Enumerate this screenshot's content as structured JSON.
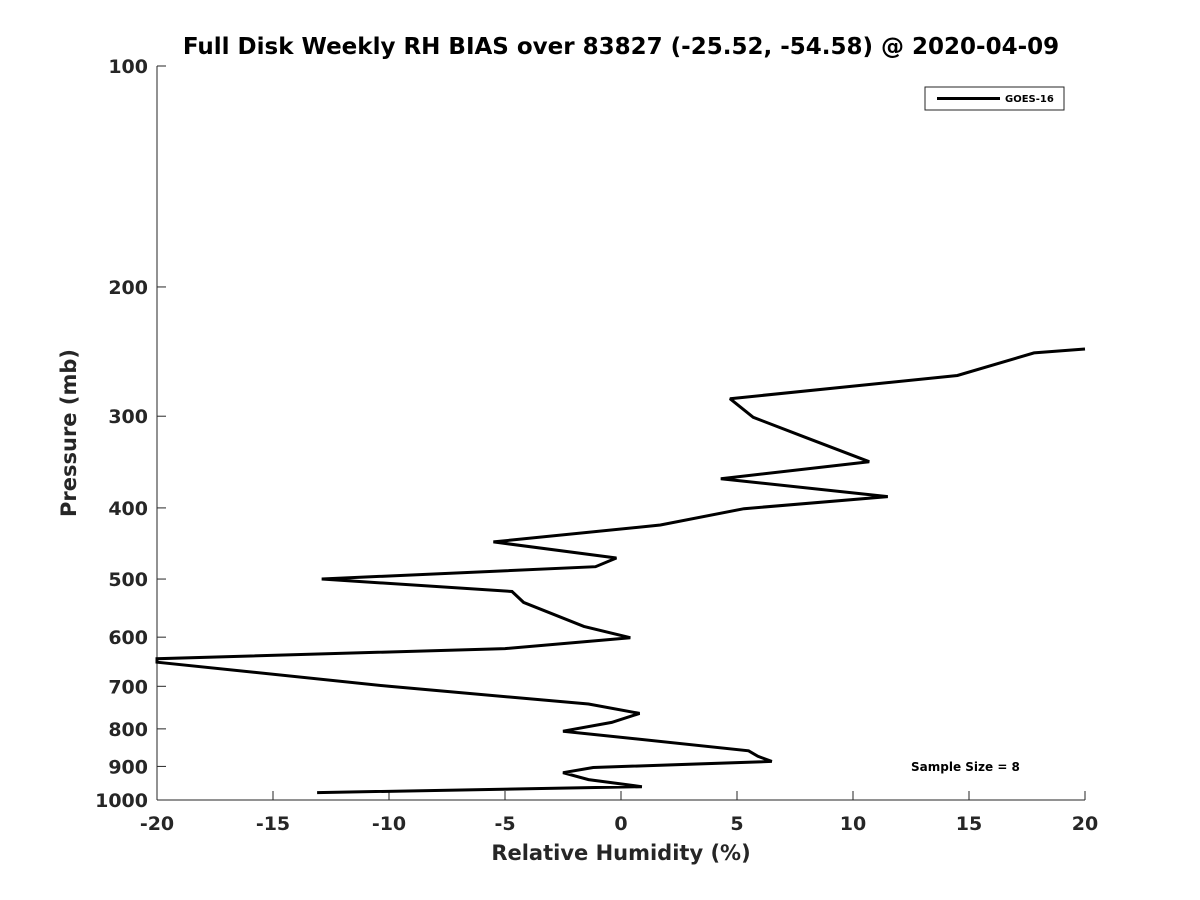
{
  "chart_data": {
    "type": "line",
    "title": "Full Disk Weekly RH BIAS over 83827 (-25.52, -54.58) @ 2020-04-09",
    "xlabel": "Relative Humidity (%)",
    "ylabel": "Pressure (mb)",
    "xlim": [
      -20,
      20
    ],
    "ylim": [
      100,
      1000
    ],
    "y_scale": "log",
    "y_reversed": true,
    "xticks": [
      -20,
      -15,
      -10,
      -5,
      0,
      5,
      10,
      15,
      20
    ],
    "xtick_labels": [
      "-20",
      "-15",
      "-10",
      "-5",
      "0",
      "5",
      "10",
      "15",
      "20"
    ],
    "yticks": [
      100,
      200,
      300,
      400,
      500,
      600,
      700,
      800,
      900,
      1000
    ],
    "ytick_labels": [
      "100",
      "200",
      "300",
      "400",
      "500",
      "600",
      "700",
      "800",
      "900",
      "1000"
    ],
    "grid": false,
    "legend_position": "top-right",
    "series": [
      {
        "name": "GOES-16",
        "color": "#000000",
        "points": [
          {
            "x": 20.0,
            "y": 243
          },
          {
            "x": 17.8,
            "y": 246
          },
          {
            "x": 14.5,
            "y": 264
          },
          {
            "x": 4.7,
            "y": 284
          },
          {
            "x": 5.7,
            "y": 301
          },
          {
            "x": 8.0,
            "y": 321
          },
          {
            "x": 10.7,
            "y": 346
          },
          {
            "x": 4.3,
            "y": 365
          },
          {
            "x": 11.5,
            "y": 386
          },
          {
            "x": 5.3,
            "y": 401
          },
          {
            "x": 1.7,
            "y": 422
          },
          {
            "x": -5.5,
            "y": 445
          },
          {
            "x": -0.2,
            "y": 468
          },
          {
            "x": -1.1,
            "y": 481
          },
          {
            "x": -12.9,
            "y": 500
          },
          {
            "x": -4.7,
            "y": 520
          },
          {
            "x": -4.2,
            "y": 538
          },
          {
            "x": -1.6,
            "y": 580
          },
          {
            "x": 0.4,
            "y": 601
          },
          {
            "x": -5.0,
            "y": 622
          },
          {
            "x": -20.0,
            "y": 642
          },
          {
            "x": -20.0,
            "y": 649
          },
          {
            "x": -10.0,
            "y": 700
          },
          {
            "x": -1.4,
            "y": 740
          },
          {
            "x": 0.8,
            "y": 762
          },
          {
            "x": -0.4,
            "y": 784
          },
          {
            "x": -2.5,
            "y": 806
          },
          {
            "x": 5.5,
            "y": 857
          },
          {
            "x": 5.9,
            "y": 872
          },
          {
            "x": 6.5,
            "y": 886
          },
          {
            "x": -1.2,
            "y": 903
          },
          {
            "x": -2.5,
            "y": 918
          },
          {
            "x": -1.4,
            "y": 938
          },
          {
            "x": 0.9,
            "y": 959
          },
          {
            "x": -13.1,
            "y": 977
          }
        ]
      }
    ],
    "annotations": [
      "Sample Size = 8"
    ]
  }
}
